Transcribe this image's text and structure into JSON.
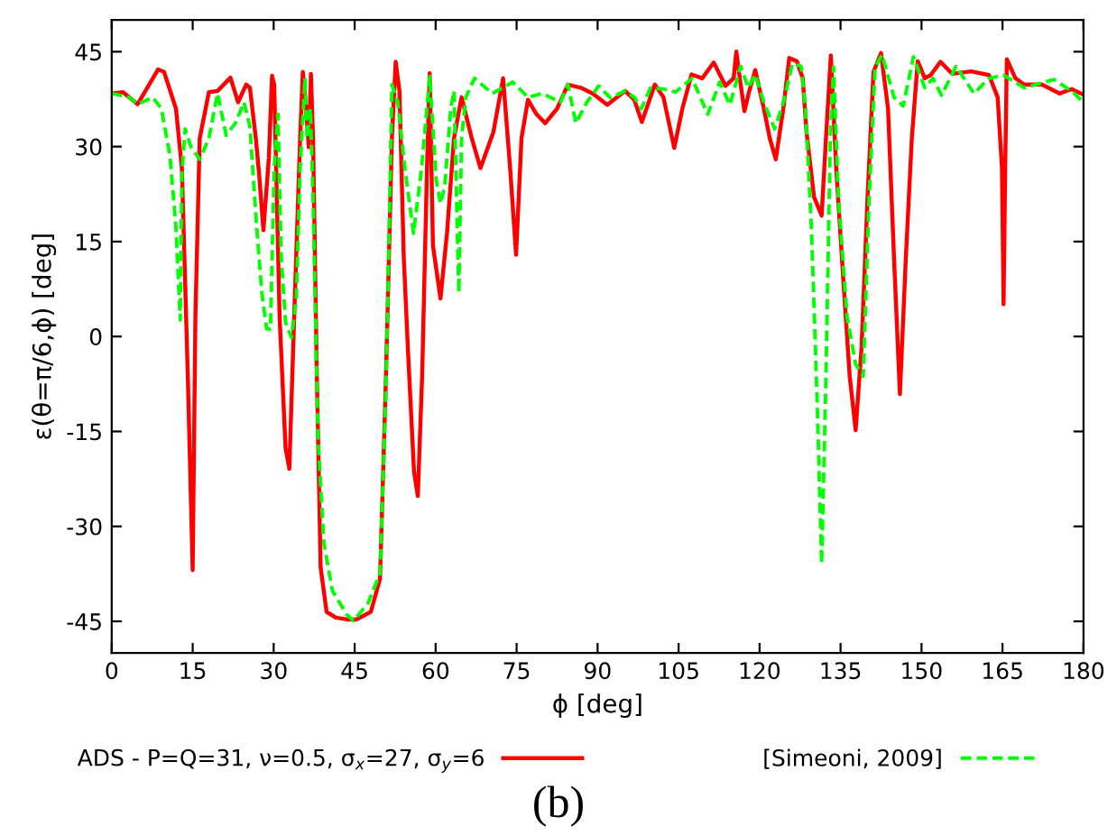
{
  "chart_data": {
    "type": "line",
    "xlabel": "ϕ [deg]",
    "ylabel": "ε(θ=π/6,ϕ) [deg]",
    "xlim": [
      0,
      180
    ],
    "ylim": [
      -50,
      50
    ],
    "xticks": [
      0,
      15,
      30,
      45,
      60,
      75,
      90,
      105,
      120,
      135,
      150,
      165,
      180
    ],
    "yticks": [
      -45,
      -30,
      -15,
      0,
      15,
      30,
      45
    ],
    "grid": false,
    "legend": "bottom",
    "marker": "none",
    "annotations": [
      "(b)"
    ],
    "series": [
      {
        "name": "ADS - P=Q=31, ν=0.5, σ$_{x}$=27, σ$_{y}$=6",
        "color": "#ff0000",
        "line_style": "solid",
        "x": [
          0,
          2.1,
          4.8,
          8.6,
          9.7,
          11.9,
          13.0,
          14.1,
          15.0,
          15.5,
          16.3,
          18.0,
          19.6,
          22.0,
          23.4,
          24.9,
          25.6,
          26.7,
          27.3,
          28.1,
          29.1,
          29.7,
          30.1,
          31.1,
          32.2,
          32.9,
          33.8,
          34.9,
          35.4,
          36.0,
          36.5,
          36.9,
          37.3,
          38.0,
          38.7,
          39.8,
          41.5,
          43.6,
          45.3,
          48.0,
          49.7,
          50.8,
          51.9,
          52.6,
          53.3,
          54.1,
          54.9,
          56.0,
          56.7,
          57.5,
          58.4,
          58.9,
          59.5,
          60.9,
          62.1,
          63.4,
          64.8,
          66.7,
          68.3,
          70.7,
          72.5,
          73.8,
          74.9,
          75.9,
          77.1,
          78.7,
          80.3,
          82.5,
          84.5,
          86.9,
          89.1,
          91.8,
          95.1,
          96.8,
          98.2,
          100.6,
          102.2,
          104.2,
          105.7,
          107.4,
          109.4,
          111.5,
          113.7,
          115.2,
          115.7,
          116.5,
          117.2,
          118.1,
          119.2,
          120.8,
          121.9,
          123.0,
          124.4,
          125.5,
          126.9,
          128.0,
          128.7,
          130.1,
          131.5,
          132.3,
          133.2,
          134.2,
          135.6,
          136.7,
          137.8,
          138.9,
          140.0,
          141.1,
          142.5,
          143.8,
          144.9,
          146.0,
          147.1,
          148.2,
          149.3,
          150.6,
          151.7,
          153.5,
          155.7,
          159.2,
          162.5,
          164.1,
          164.9,
          165.2,
          165.5,
          165.8,
          167.4,
          169.0,
          172.3,
          175.6,
          177.8,
          180
        ],
        "values": [
          38.4,
          38.6,
          36.7,
          42.2,
          41.8,
          36.0,
          26.6,
          -6.3,
          -36.9,
          3.1,
          31.3,
          38.6,
          38.8,
          40.9,
          37.0,
          39.8,
          39.3,
          31.3,
          25.7,
          16.8,
          28.1,
          41.2,
          39.8,
          3.1,
          -17.6,
          -20.9,
          3.1,
          31.3,
          41.8,
          36.0,
          29.9,
          41.5,
          31.3,
          -6.3,
          -36.5,
          -43.5,
          -44.4,
          -44.7,
          -44.7,
          -43.5,
          -38.3,
          -6.3,
          31.3,
          43.4,
          38.8,
          12.5,
          -2.6,
          -21.4,
          -25.2,
          -6.3,
          26.6,
          41.6,
          14.4,
          6.0,
          16.3,
          31.3,
          37.8,
          31.3,
          26.6,
          32.3,
          40.8,
          26.6,
          12.9,
          31.3,
          37.4,
          35.1,
          33.7,
          36.0,
          39.8,
          39.3,
          38.4,
          36.6,
          38.8,
          37.4,
          33.9,
          39.8,
          37.8,
          29.8,
          36.0,
          41.4,
          40.8,
          43.3,
          39.6,
          40.8,
          45.0,
          39.8,
          35.6,
          38.8,
          42.1,
          36.0,
          31.3,
          28.0,
          36.0,
          44.0,
          43.5,
          40.8,
          32.3,
          22.0,
          19.1,
          31.3,
          44.4,
          26.6,
          7.8,
          -6.3,
          -14.8,
          -1.6,
          22.0,
          41.8,
          44.8,
          36.0,
          12.5,
          -9.1,
          12.5,
          31.3,
          43.5,
          40.8,
          41.3,
          43.4,
          41.5,
          41.9,
          41.3,
          37.8,
          26.6,
          5.1,
          26.6,
          43.8,
          40.8,
          39.8,
          39.8,
          38.4,
          39.1,
          38.2
        ]
      },
      {
        "name": "[Simeoni, 2009]",
        "color": "#00ff00",
        "line_style": "dashed",
        "x": [
          0,
          3.2,
          4.8,
          7.6,
          9.2,
          10.8,
          11.9,
          12.7,
          13.0,
          13.6,
          14.7,
          16.3,
          18.0,
          19.6,
          21.2,
          22.9,
          24.5,
          25.6,
          26.7,
          27.8,
          28.7,
          29.4,
          30.1,
          30.8,
          31.4,
          32.2,
          33.3,
          34.2,
          34.9,
          35.8,
          36.2,
          36.8,
          37.3,
          38.2,
          39.3,
          40.9,
          43.6,
          44.8,
          47.5,
          49.7,
          50.8,
          51.3,
          51.9,
          53.0,
          54.3,
          55.9,
          57.4,
          58.9,
          60.1,
          60.9,
          61.7,
          62.8,
          63.4,
          64.3,
          64.8,
          65.6,
          67.2,
          70.5,
          74.3,
          77.1,
          79.8,
          83.1,
          84.5,
          86.0,
          88.0,
          90.2,
          92.4,
          95.1,
          96.8,
          98.1,
          99.8,
          102.2,
          104.4,
          107.5,
          110.4,
          112.6,
          114.5,
          116.5,
          117.9,
          119.2,
          120.8,
          122.8,
          124.4,
          126.1,
          127.7,
          128.5,
          129.6,
          130.7,
          131.5,
          132.3,
          133.1,
          133.7,
          134.6,
          136.2,
          137.8,
          139.2,
          140.3,
          141.4,
          142.7,
          144.9,
          146.6,
          148.5,
          150.6,
          152.1,
          153.7,
          156.4,
          159.7,
          162.5,
          165.2,
          169.0,
          174.5,
          177.8,
          180.0
        ],
        "values": [
          38.4,
          37.8,
          36.7,
          37.8,
          36.0,
          28.5,
          17.2,
          2.6,
          25.7,
          32.8,
          29.9,
          28.0,
          31.3,
          38.4,
          31.8,
          33.7,
          37.0,
          33.2,
          19.1,
          6.9,
          1.2,
          1.2,
          26.6,
          35.1,
          12.5,
          2.2,
          -0.2,
          6.0,
          26.6,
          40.8,
          31.3,
          36.0,
          21.9,
          -15.7,
          -32.7,
          -40.2,
          -44.0,
          -44.9,
          -42.1,
          -37.4,
          -8.2,
          12.5,
          39.8,
          37.0,
          26.6,
          16.3,
          26.6,
          41.1,
          24.7,
          21.0,
          23.8,
          36.0,
          38.8,
          6.9,
          31.3,
          37.8,
          40.8,
          38.4,
          40.2,
          37.8,
          38.4,
          37.0,
          39.8,
          33.7,
          37.0,
          39.6,
          37.7,
          38.8,
          37.8,
          36.0,
          39.3,
          39.1,
          38.6,
          40.8,
          35.1,
          40.2,
          36.6,
          42.7,
          39.3,
          41.4,
          37.0,
          32.8,
          37.0,
          43.1,
          42.7,
          36.0,
          17.2,
          -11.0,
          -35.9,
          -6.3,
          31.3,
          42.6,
          22.0,
          3.1,
          -4.4,
          -6.3,
          22.0,
          42.6,
          44.5,
          37.8,
          36.4,
          44.2,
          39.3,
          40.8,
          38.1,
          42.7,
          38.4,
          40.8,
          41.3,
          39.3,
          40.6,
          38.8,
          37.0
        ]
      }
    ]
  }
}
